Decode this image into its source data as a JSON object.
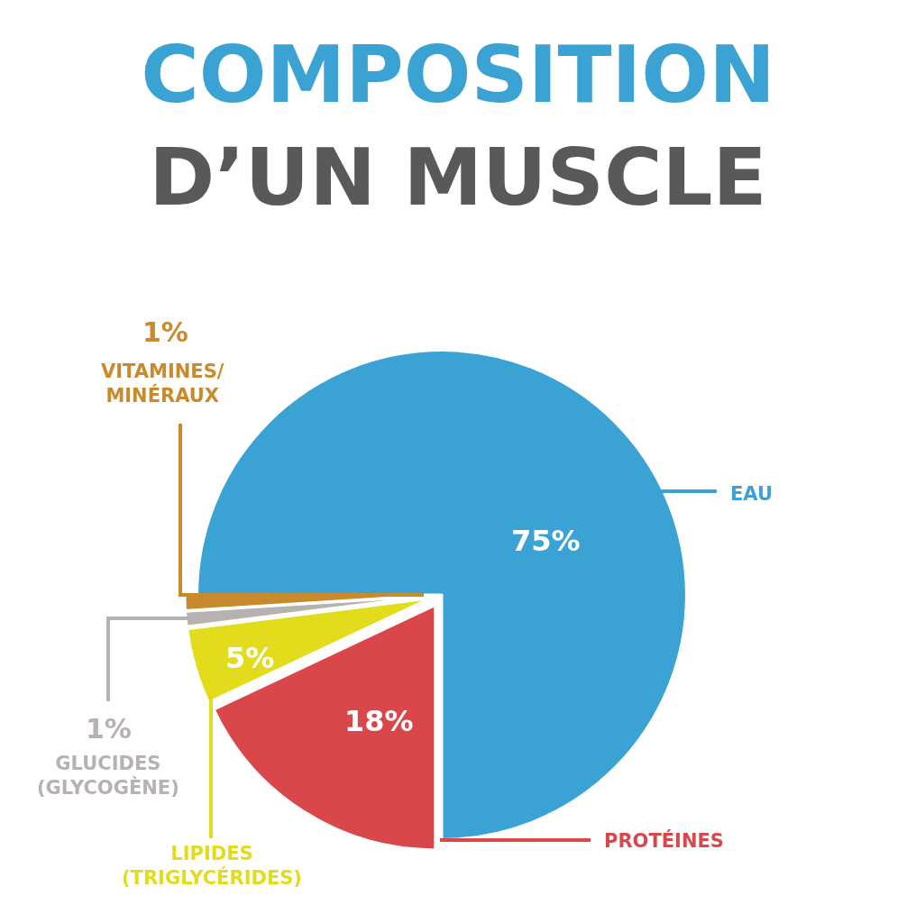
{
  "chart_data": {
    "type": "pie",
    "title": "COMPOSITION\nD’UN MUSCLE",
    "categories": [
      "EAU",
      "PROTÉINES",
      "LIPIDES\n(TRIGLYCÉRIDES)",
      "GLUCIDES\n(GLYCOGÈNE)",
      "VITAMINES/\nMINÉRAUX"
    ],
    "values": [
      75,
      18,
      5,
      1,
      1
    ],
    "value_labels": [
      "75%",
      "18%",
      "5%",
      "1%",
      "1%"
    ],
    "colors": [
      "#3ba3d3",
      "#d9474a",
      "#e3dc1c",
      "#b7b1b1",
      "#c88a2b"
    ],
    "legend": false
  }
}
